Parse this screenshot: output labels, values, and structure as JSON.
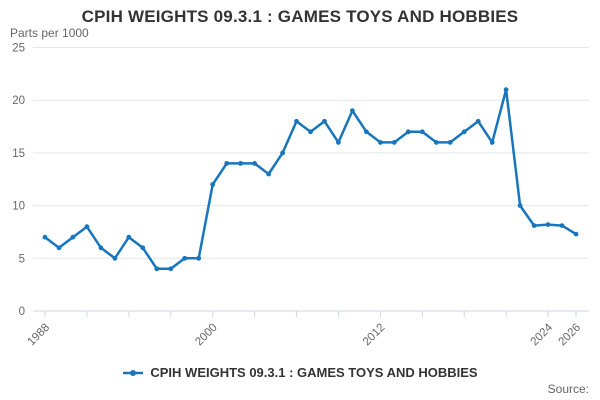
{
  "header": {
    "title": "CPIH WEIGHTS 09.3.1 : GAMES TOYS AND HOBBIES"
  },
  "y_axis": {
    "title": "Parts per 1000"
  },
  "legend": {
    "label": "CPIH WEIGHTS 09.3.1 : GAMES TOYS AND HOBBIES"
  },
  "footer": {
    "source_label": "Source:"
  },
  "colors": {
    "line": "#1776bd",
    "grid": "#e6e6e6",
    "axis": "#ccd6eb",
    "text_muted": "#666666",
    "text_dark": "#333333"
  },
  "chart_data": {
    "type": "line",
    "title": "CPIH WEIGHTS 09.3.1 : GAMES TOYS AND HOBBIES",
    "ylabel": "Parts per 1000",
    "xlabel": "",
    "ylim": [
      0,
      25
    ],
    "yticks": [
      0,
      5,
      10,
      15,
      20,
      25
    ],
    "xlim": [
      1988,
      2026
    ],
    "xticks": [
      1988,
      1991,
      1994,
      1997,
      2000,
      2003,
      2006,
      2009,
      2012,
      2015,
      2018,
      2021,
      2024,
      2026
    ],
    "xtick_labels": [
      1988,
      2000,
      2012,
      2024,
      2026
    ],
    "grid": true,
    "legend_position": "bottom",
    "x": [
      1988,
      1989,
      1990,
      1991,
      1992,
      1993,
      1994,
      1995,
      1996,
      1997,
      1998,
      1999,
      2000,
      2001,
      2002,
      2003,
      2004,
      2005,
      2006,
      2007,
      2008,
      2009,
      2010,
      2011,
      2012,
      2013,
      2014,
      2015,
      2016,
      2017,
      2018,
      2019,
      2020,
      2021,
      2022,
      2023,
      2024,
      2025,
      2026
    ],
    "series": [
      {
        "name": "CPIH WEIGHTS 09.3.1 : GAMES TOYS AND HOBBIES",
        "color": "#1776bd",
        "marker": "circle",
        "values": [
          7,
          6,
          7,
          8,
          6,
          5,
          7,
          6,
          4,
          4,
          5,
          5,
          12,
          14,
          14,
          14,
          13,
          15,
          18,
          17,
          18,
          16,
          19,
          17,
          16,
          16,
          17,
          17,
          16,
          16,
          17,
          18,
          16,
          21,
          10,
          8.1,
          8.2,
          8.1,
          7.3
        ]
      }
    ]
  }
}
